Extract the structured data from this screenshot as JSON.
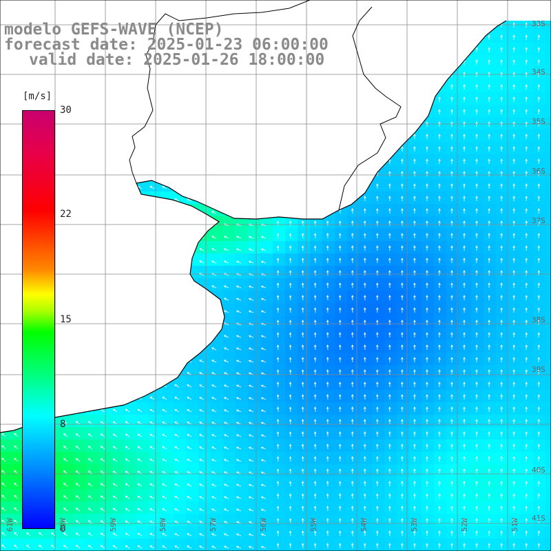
{
  "title": {
    "line1": "modelo GEFS-WAVE (NCEP)",
    "line2": "forecast date: 2025-01-23 06:00:00",
    "line3": "valid date: 2025-01-26 18:00:00"
  },
  "colorbar": {
    "unit": "[m/s]",
    "ticks": [
      "30",
      "22",
      "15",
      "8",
      "0"
    ],
    "tick_values": [
      30,
      22,
      15,
      8,
      0
    ],
    "range": [
      0,
      30
    ],
    "colors": [
      "#0000ff",
      "#0088ff",
      "#00ffff",
      "#00ff88",
      "#00ff00",
      "#ffff00",
      "#ff8800",
      "#ff0000",
      "#c8006e"
    ]
  },
  "axes": {
    "lon_labels": [
      "61W",
      "60W",
      "59W",
      "58W",
      "57W",
      "56W",
      "55W",
      "54W",
      "53W",
      "52W",
      "51W"
    ],
    "lat_labels": [
      "33S",
      "34S",
      "35S",
      "36S",
      "37S",
      "38S",
      "39S",
      "40S",
      "41S"
    ]
  },
  "map": {
    "region": "Rio de la Plata / South Atlantic",
    "colors": {
      "land": "#ffffff",
      "coastline": "#000000",
      "grid": "#888888",
      "arrows": "#ffffff"
    }
  }
}
